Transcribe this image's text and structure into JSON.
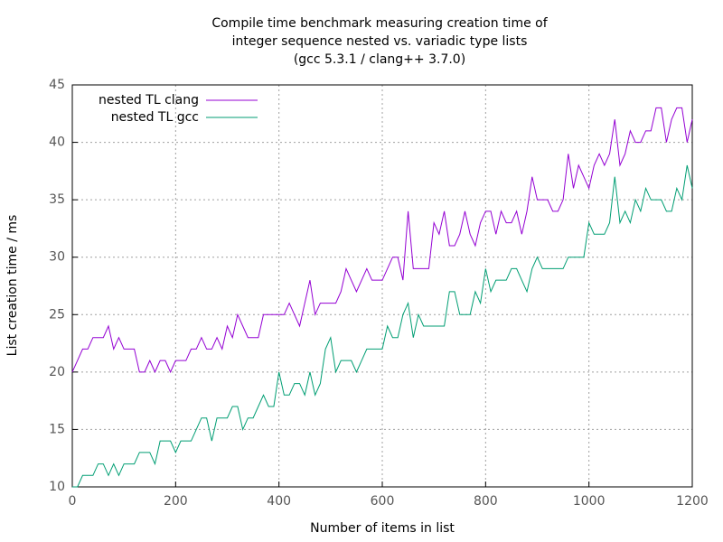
{
  "chart_data": {
    "type": "line",
    "title": [
      "Compile time benchmark measuring creation time of",
      "integer sequence nested vs. variadic type lists",
      "(gcc 5.3.1 / clang++ 3.7.0)"
    ],
    "x_label": "Number of items in list",
    "y_label": "List creation time / ms",
    "x": [
      0,
      10,
      20,
      30,
      40,
      50,
      60,
      70,
      80,
      90,
      100,
      110,
      120,
      130,
      140,
      150,
      160,
      170,
      180,
      190,
      200,
      210,
      220,
      230,
      240,
      250,
      260,
      270,
      280,
      290,
      300,
      310,
      320,
      330,
      340,
      350,
      360,
      370,
      380,
      390,
      400,
      410,
      420,
      430,
      440,
      450,
      460,
      470,
      480,
      490,
      500,
      510,
      520,
      530,
      540,
      550,
      560,
      570,
      580,
      590,
      600,
      610,
      620,
      630,
      640,
      650,
      660,
      670,
      680,
      690,
      700,
      710,
      720,
      730,
      740,
      750,
      760,
      770,
      780,
      790,
      800,
      810,
      820,
      830,
      840,
      850,
      860,
      870,
      880,
      890,
      900,
      910,
      920,
      930,
      940,
      950,
      960,
      970,
      980,
      990,
      1000,
      1010,
      1020,
      1030,
      1040,
      1050,
      1060,
      1070,
      1080,
      1090,
      1100,
      1110,
      1120,
      1130,
      1140,
      1150,
      1160,
      1170,
      1180,
      1190,
      1200
    ],
    "series": [
      {
        "name": "nested TL clang",
        "color": "#9400d3",
        "values": [
          20,
          21,
          22,
          22,
          23,
          23,
          23,
          24,
          22,
          23,
          22,
          22,
          22,
          20,
          20,
          21,
          20,
          21,
          21,
          20,
          21,
          21,
          21,
          22,
          22,
          23,
          22,
          22,
          23,
          22,
          24,
          23,
          25,
          24,
          23,
          23,
          23,
          25,
          25,
          25,
          25,
          25,
          26,
          25,
          24,
          26,
          28,
          25,
          26,
          26,
          26,
          26,
          27,
          29,
          28,
          27,
          28,
          29,
          28,
          28,
          28,
          29,
          30,
          30,
          28,
          34,
          29,
          29,
          29,
          29,
          33,
          32,
          34,
          31,
          31,
          32,
          34,
          32,
          31,
          33,
          34,
          34,
          32,
          34,
          33,
          33,
          34,
          32,
          34,
          37,
          35,
          35,
          35,
          34,
          34,
          35,
          39,
          36,
          38,
          37,
          36,
          38,
          39,
          38,
          39,
          42,
          38,
          39,
          41,
          40,
          40,
          41,
          41,
          43,
          43,
          40,
          42,
          43,
          43,
          40,
          42
        ]
      },
      {
        "name": "nested TL gcc",
        "color": "#009e73",
        "values": [
          10,
          10,
          11,
          11,
          11,
          12,
          12,
          11,
          12,
          11,
          12,
          12,
          12,
          13,
          13,
          13,
          12,
          14,
          14,
          14,
          13,
          14,
          14,
          14,
          15,
          16,
          16,
          14,
          16,
          16,
          16,
          17,
          17,
          15,
          16,
          16,
          17,
          18,
          17,
          17,
          20,
          18,
          18,
          19,
          19,
          18,
          20,
          18,
          19,
          22,
          23,
          20,
          21,
          21,
          21,
          20,
          21,
          22,
          22,
          22,
          22,
          24,
          23,
          23,
          25,
          26,
          23,
          25,
          24,
          24,
          24,
          24,
          24,
          27,
          27,
          25,
          25,
          25,
          27,
          26,
          29,
          27,
          28,
          28,
          28,
          29,
          29,
          28,
          27,
          29,
          30,
          29,
          29,
          29,
          29,
          29,
          30,
          30,
          30,
          30,
          33,
          32,
          32,
          32,
          33,
          37,
          33,
          34,
          33,
          35,
          34,
          36,
          35,
          35,
          35,
          34,
          34,
          36,
          35,
          38,
          36
        ]
      }
    ],
    "xlim": [
      0,
      1200
    ],
    "xticks": [
      0,
      200,
      400,
      600,
      800,
      1000,
      1200
    ],
    "ylim": [
      10,
      45
    ],
    "yticks": [
      10,
      15,
      20,
      25,
      30,
      35,
      40,
      45
    ],
    "grid": true,
    "legend": "top-left"
  }
}
